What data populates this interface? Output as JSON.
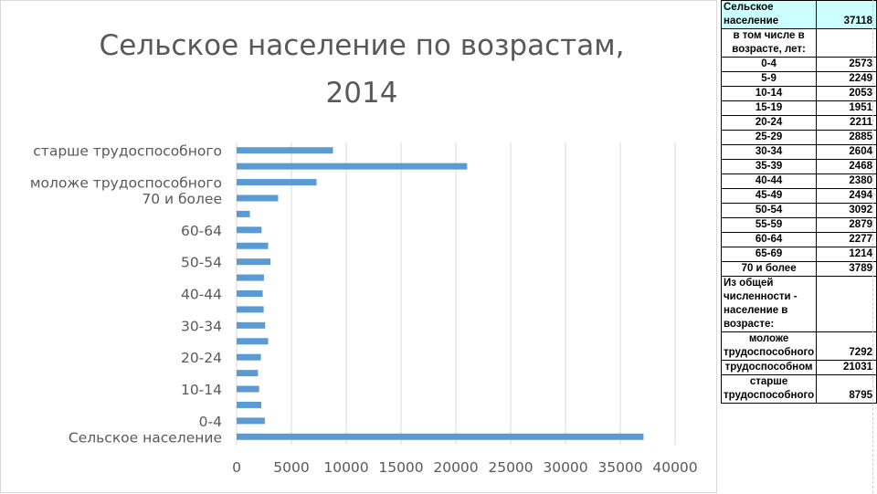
{
  "chart_data": {
    "type": "bar",
    "orientation": "horizontal",
    "title": "Сельское население по возрастам, 2014",
    "title_lines": [
      "Сельское население по возрастам,",
      "2014"
    ],
    "categories": [
      "Сельское население",
      "0-4",
      "5-9",
      "10-14",
      "15-19",
      "20-24",
      "25-29",
      "30-34",
      "35-39",
      "40-44",
      "45-49",
      "50-54",
      "55-59",
      "60-64",
      "65-69",
      "70 и более",
      "моложе трудоспособного",
      "трудоспособном",
      "старше трудоспособного"
    ],
    "values": [
      37118,
      2573,
      2249,
      2053,
      1951,
      2211,
      2885,
      2604,
      2468,
      2380,
      2494,
      3092,
      2879,
      2277,
      1214,
      3789,
      7292,
      21031,
      8795
    ],
    "category_labels_shown": [
      "старше трудоспособного",
      "моложе трудоспособного",
      "70 и более",
      "60-64",
      "50-54",
      "40-44",
      "30-34",
      "20-24",
      "10-14",
      "0-4",
      "Сельское население"
    ],
    "x_ticks": [
      "0",
      "5000",
      "10000",
      "15000",
      "20000",
      "25000",
      "30000",
      "35000",
      "40000"
    ],
    "xlim": [
      0,
      40000
    ],
    "bar_color": "#5b9bd5",
    "grid": "vertical",
    "legend": "none"
  },
  "table": {
    "rows": [
      {
        "label": "Сельское население",
        "value": "37118",
        "style": "header"
      },
      {
        "label": "в том числе в возрасте, лет:",
        "value": "",
        "style": "center"
      },
      {
        "label": "0-4",
        "value": "2573",
        "style": "center"
      },
      {
        "label": "5-9",
        "value": "2249",
        "style": "center"
      },
      {
        "label": "10-14",
        "value": "2053",
        "style": "center"
      },
      {
        "label": "15-19",
        "value": "1951",
        "style": "center"
      },
      {
        "label": "20-24",
        "value": "2211",
        "style": "center"
      },
      {
        "label": "25-29",
        "value": "2885",
        "style": "center"
      },
      {
        "label": "30-34",
        "value": "2604",
        "style": "center"
      },
      {
        "label": "35-39",
        "value": "2468",
        "style": "center"
      },
      {
        "label": "40-44",
        "value": "2380",
        "style": "center"
      },
      {
        "label": "45-49",
        "value": "2494",
        "style": "center"
      },
      {
        "label": "50-54",
        "value": "3092",
        "style": "center"
      },
      {
        "label": "55-59",
        "value": "2879",
        "style": "center"
      },
      {
        "label": "60-64",
        "value": "2277",
        "style": "center"
      },
      {
        "label": "65-69",
        "value": "1214",
        "style": "center"
      },
      {
        "label": "70 и более",
        "value": "3789",
        "style": "center"
      },
      {
        "label": "Из общей численности - население в возрасте:",
        "value": "",
        "style": "left"
      },
      {
        "label": "моложе трудоспособного",
        "value": "7292",
        "style": "center"
      },
      {
        "label": "трудоспособном",
        "value": "21031",
        "style": "center"
      },
      {
        "label": "старше трудоспособного",
        "value": "8795",
        "style": "center"
      }
    ],
    "header_fill": "#ccffff"
  }
}
